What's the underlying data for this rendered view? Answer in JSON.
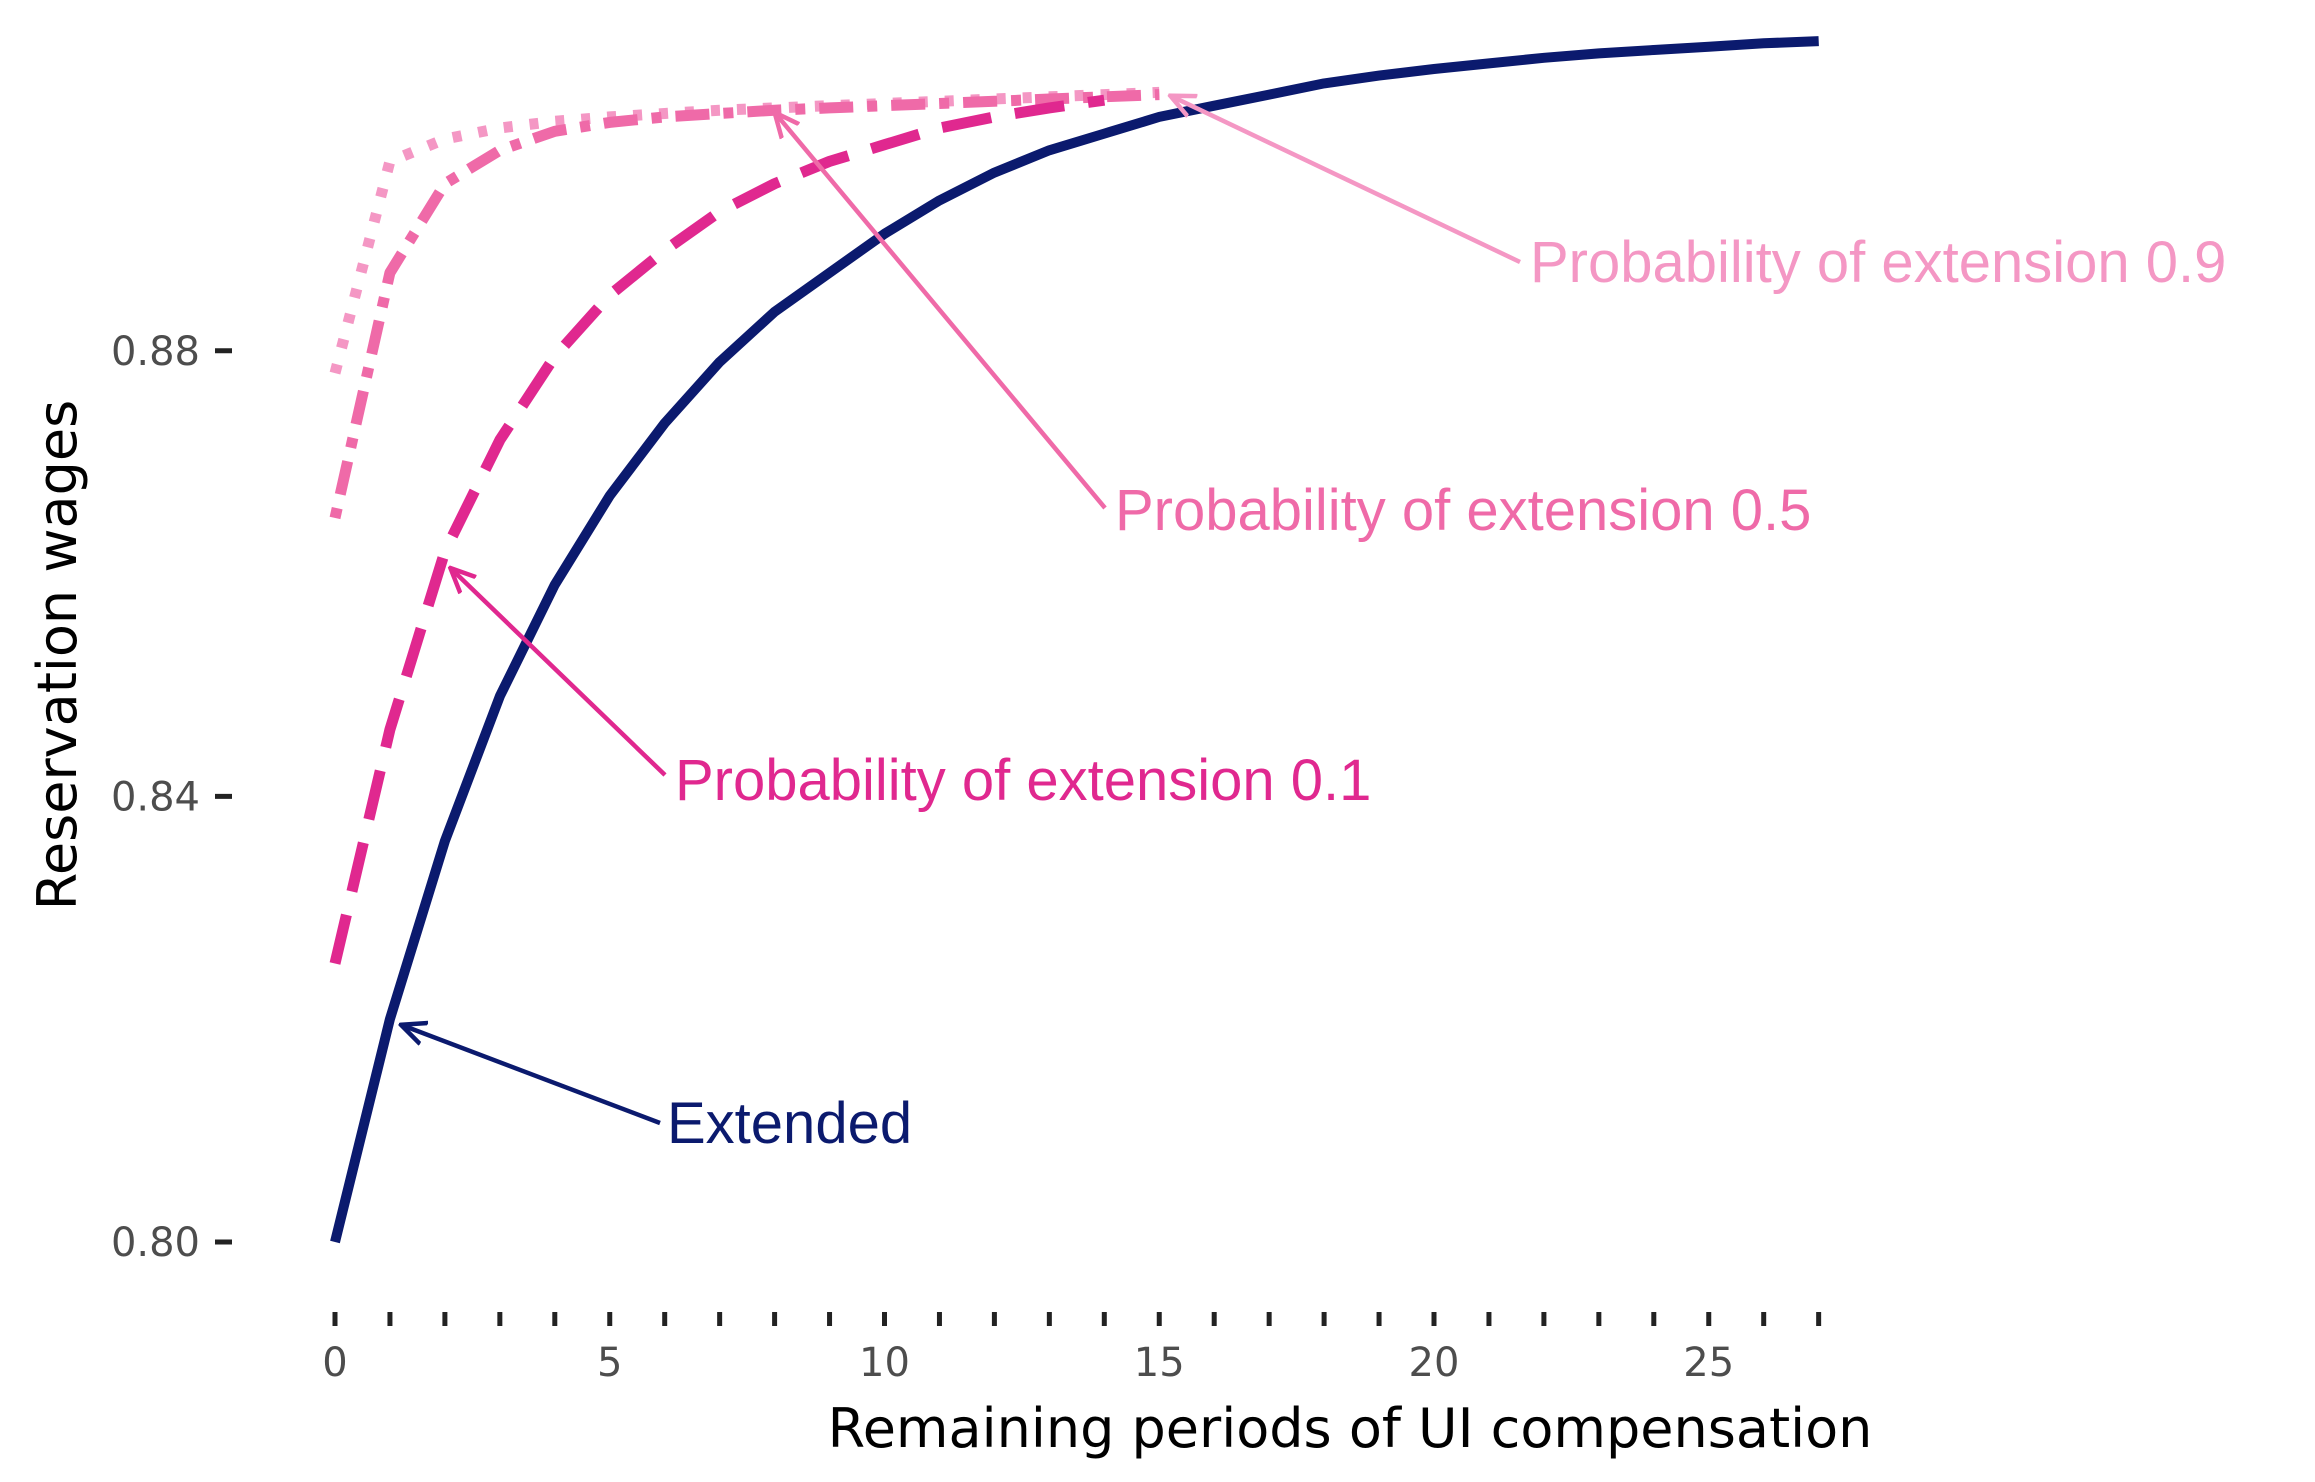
{
  "chart_data": {
    "type": "line",
    "title": "",
    "xlabel": "Remaining periods of UI compensation",
    "ylabel": "Reservation wages",
    "xlim": [
      0,
      27
    ],
    "ylim": [
      0.79,
      0.906
    ],
    "x_ticks": [
      0,
      5,
      10,
      15,
      20,
      25
    ],
    "x_tick_labels": [
      "0",
      "5",
      "10",
      "15",
      "20",
      "25"
    ],
    "x_minor_ticks": [
      1,
      2,
      3,
      4,
      6,
      7,
      8,
      9,
      11,
      12,
      13,
      14,
      16,
      17,
      18,
      19,
      21,
      22,
      23,
      24,
      26,
      27
    ],
    "y_ticks": [
      0.8,
      0.84,
      0.88
    ],
    "y_tick_labels": [
      "0.80",
      "0.84",
      "0.88"
    ],
    "grid": false,
    "legend": "none (direct annotations)",
    "series": [
      {
        "name": "Extended",
        "style": "solid",
        "color": "#0b1a6e",
        "x": [
          0,
          1,
          2,
          3,
          4,
          5,
          6,
          7,
          8,
          9,
          10,
          11,
          12,
          13,
          14,
          15,
          16,
          17,
          18,
          19,
          20,
          21,
          22,
          23,
          24,
          25,
          26,
          27
        ],
        "values": [
          0.8,
          0.82,
          0.836,
          0.849,
          0.859,
          0.867,
          0.8735,
          0.879,
          0.8835,
          0.887,
          0.8905,
          0.8935,
          0.896,
          0.898,
          0.8995,
          0.901,
          0.902,
          0.903,
          0.904,
          0.9047,
          0.9053,
          0.9058,
          0.9063,
          0.9067,
          0.907,
          0.9073,
          0.9076,
          0.9078
        ]
      },
      {
        "name": "Probability of extension 0.1",
        "style": "dashed",
        "color": "#e0288f",
        "x": [
          0,
          1,
          2,
          3,
          4,
          5,
          6,
          7,
          8,
          9,
          10,
          11,
          12,
          13,
          14
        ],
        "values": [
          0.825,
          0.846,
          0.862,
          0.872,
          0.8795,
          0.885,
          0.889,
          0.8925,
          0.895,
          0.897,
          0.8985,
          0.9,
          0.901,
          0.9018,
          0.9025
        ]
      },
      {
        "name": "Probability of extension 0.5",
        "style": "dotdash",
        "color": "#ef6aa8",
        "x": [
          0,
          1,
          2,
          3,
          4,
          5,
          6,
          7,
          8,
          9,
          10,
          11,
          12,
          13,
          14,
          15
        ],
        "values": [
          0.865,
          0.887,
          0.895,
          0.898,
          0.8997,
          0.9005,
          0.901,
          0.9013,
          0.9016,
          0.9018,
          0.902,
          0.9022,
          0.9024,
          0.9026,
          0.9028,
          0.903
        ]
      },
      {
        "name": "Probability of extension 0.9",
        "style": "dotted",
        "color": "#f497c4",
        "x": [
          0,
          1,
          2,
          3,
          4,
          5,
          6,
          7,
          8,
          9,
          10,
          11,
          12,
          13,
          14,
          15
        ],
        "values": [
          0.878,
          0.897,
          0.899,
          0.9,
          0.9006,
          0.901,
          0.9013,
          0.9016,
          0.9018,
          0.902,
          0.9022,
          0.9024,
          0.9026,
          0.9028,
          0.903,
          0.9032
        ]
      }
    ],
    "annotations": [
      {
        "text": "Extended",
        "color": "#0b1a6e",
        "points_to": {
          "x": 1.2,
          "y": 0.8195
        }
      },
      {
        "text": "Probability of extension 0.1",
        "color": "#e0288f",
        "points_to": {
          "x": 2.1,
          "y": 0.8605
        }
      },
      {
        "text": "Probability of extension 0.5",
        "color": "#ef6aa8",
        "points_to": {
          "x": 8.0,
          "y": 0.9014
        }
      },
      {
        "text": "Probability of extension 0.9",
        "color": "#f497c4",
        "points_to": {
          "x": 15.2,
          "y": 0.9029
        }
      }
    ]
  }
}
